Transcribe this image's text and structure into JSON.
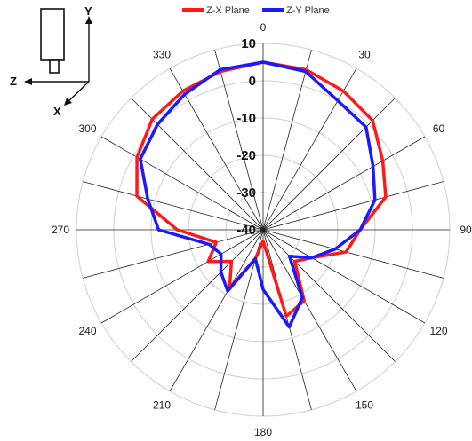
{
  "chart_data": {
    "type": "radar",
    "angle_labels": [
      "0",
      "30",
      "60",
      "90",
      "120",
      "150",
      "180",
      "210",
      "240",
      "270",
      "300",
      "330"
    ],
    "radial_labels": [
      "10",
      "0",
      "-10",
      "-20",
      "-30",
      "-40"
    ],
    "rlim": [
      -40,
      10
    ],
    "grid": true,
    "legend_position": "top",
    "series": [
      {
        "name": "Z-X Plane",
        "color": "#ff1a1a",
        "points": [
          [
            0,
            5
          ],
          [
            15,
            4.5
          ],
          [
            30,
            3
          ],
          [
            45,
            1.5
          ],
          [
            60,
            -3
          ],
          [
            75,
            -6
          ],
          [
            90,
            -14
          ],
          [
            105,
            -17
          ],
          [
            120,
            -25
          ],
          [
            135,
            -28
          ],
          [
            150,
            -18
          ],
          [
            165,
            -16
          ],
          [
            180,
            -37
          ],
          [
            195,
            -32
          ],
          [
            210,
            -22
          ],
          [
            225,
            -28
          ],
          [
            240,
            -23
          ],
          [
            255,
            -27
          ],
          [
            270,
            -17
          ],
          [
            285,
            -5
          ],
          [
            300,
            -1
          ],
          [
            315,
            2
          ],
          [
            330,
            3
          ],
          [
            345,
            4
          ]
        ]
      },
      {
        "name": "Z-Y Plane",
        "color": "#1a1aff",
        "points": [
          [
            0,
            5
          ],
          [
            15,
            4
          ],
          [
            30,
            0
          ],
          [
            45,
            -1
          ],
          [
            60,
            -6
          ],
          [
            75,
            -9
          ],
          [
            90,
            -14
          ],
          [
            105,
            -20
          ],
          [
            120,
            -25
          ],
          [
            135,
            -30
          ],
          [
            150,
            -19
          ],
          [
            165,
            -13
          ],
          [
            180,
            -24
          ],
          [
            195,
            -32
          ],
          [
            210,
            -21
          ],
          [
            225,
            -24
          ],
          [
            240,
            -27
          ],
          [
            255,
            -25
          ],
          [
            270,
            -12
          ],
          [
            285,
            -8
          ],
          [
            300,
            -2
          ],
          [
            315,
            0
          ],
          [
            330,
            2
          ],
          [
            345,
            4.5
          ]
        ]
      }
    ]
  },
  "axes_icon": {
    "y_label": "Y",
    "z_label": "Z",
    "x_label": "X"
  }
}
